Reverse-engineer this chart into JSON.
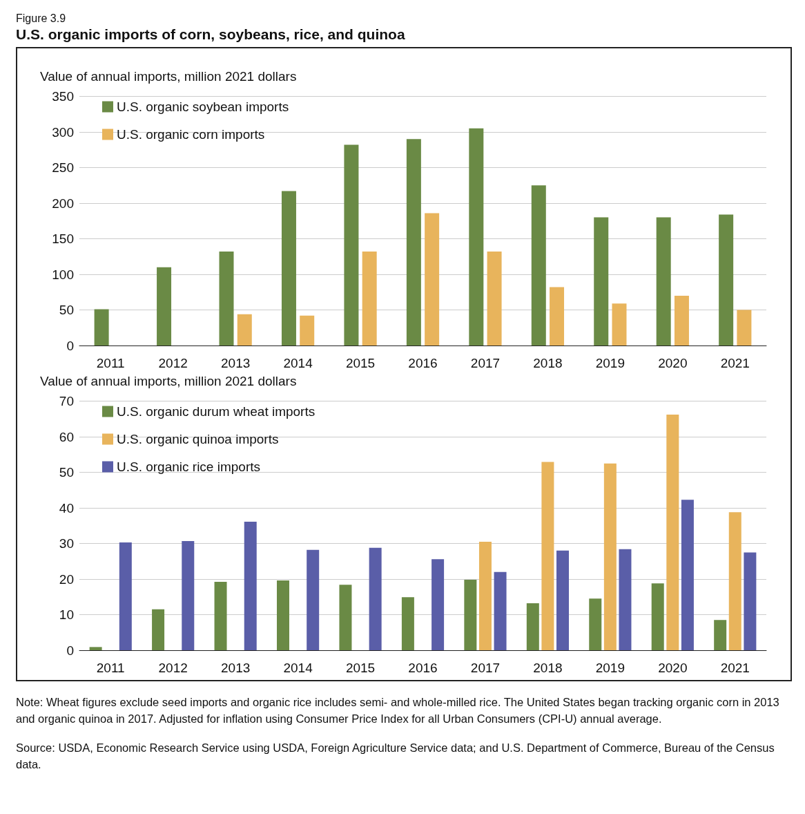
{
  "chart_data": [
    {
      "type": "bar",
      "subtitle": "Figure 3.9",
      "title": "U.S. organic imports of corn, soybeans, rice, and quinoa",
      "ylabel": "Value of annual imports, million 2021 dollars",
      "categories": [
        "2011",
        "2012",
        "2013",
        "2014",
        "2015",
        "2016",
        "2017",
        "2018",
        "2019",
        "2020",
        "2021"
      ],
      "series": [
        {
          "name": "U.S. organic soybean imports",
          "color": "#6a8a45",
          "values": [
            51,
            110,
            132,
            217,
            282,
            290,
            305,
            225,
            180,
            180,
            184
          ]
        },
        {
          "name": "U.S. organic corn imports",
          "color": "#e8b45c",
          "values": [
            null,
            null,
            44,
            42,
            132,
            186,
            132,
            82,
            59,
            70,
            50
          ]
        }
      ],
      "ylim": [
        0,
        350
      ],
      "yticks": [
        0,
        50,
        100,
        150,
        200,
        250,
        300,
        350
      ],
      "grid": "y",
      "legend": "top left"
    },
    {
      "type": "bar",
      "ylabel": "Value of annual imports, million 2021 dollars",
      "categories": [
        "2011",
        "2012",
        "2013",
        "2014",
        "2015",
        "2016",
        "2017",
        "2018",
        "2019",
        "2020",
        "2021"
      ],
      "series": [
        {
          "name": "U.S. organic durum wheat imports",
          "color": "#6a8a45",
          "values": [
            0.9,
            11.5,
            19.2,
            19.6,
            18.4,
            14.9,
            19.8,
            13.2,
            14.5,
            18.8,
            8.5
          ]
        },
        {
          "name": "U.S. organic quinoa imports",
          "color": "#e8b45c",
          "values": [
            null,
            null,
            null,
            null,
            null,
            null,
            30.5,
            52.9,
            52.5,
            66.2,
            38.8
          ]
        },
        {
          "name": "U.S. organic rice imports",
          "color": "#5a5ea8",
          "values": [
            30.3,
            30.7,
            36.1,
            28.2,
            28.8,
            25.6,
            22.0,
            28.0,
            28.4,
            42.3,
            27.5
          ]
        }
      ],
      "ylim": [
        0,
        70
      ],
      "yticks": [
        0,
        10,
        20,
        30,
        40,
        50,
        60,
        70
      ],
      "grid": "y",
      "legend": "top left",
      "annotations": [
        "Note: Wheat figures exclude seed imports and organic rice includes semi- and whole-milled rice. The United States began tracking organic corn in 2013 and organic quinoa in 2017. Adjusted for inflation using Consumer Price Index for all Urban Consumers (CPI-U) annual average.",
        "Source: USDA, Economic Research Service using USDA, Foreign Agriculture Service data; and U.S. Department of Commerce, Bureau of the Census data."
      ]
    }
  ]
}
